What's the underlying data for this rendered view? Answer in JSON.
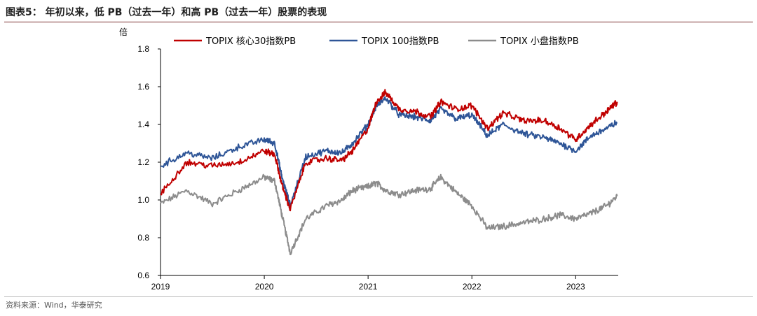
{
  "figure_title": "图表5：  年初以来，低 PB（过去一年）和高 PB（过去一年）股票的表现",
  "source_text": "资料来源：Wind，华泰研究",
  "chart_data": {
    "type": "line",
    "title": "",
    "ylabel": "倍",
    "xlabel": "",
    "ylim": [
      0.6,
      1.8
    ],
    "yticks": [
      "0.6",
      "0.8",
      "1.0",
      "1.2",
      "1.4",
      "1.6",
      "1.8"
    ],
    "xticks": [
      "2019",
      "2020",
      "2021",
      "2022",
      "2023"
    ],
    "x": [
      2019.0,
      2019.25,
      2019.5,
      2019.75,
      2020.0,
      2020.1,
      2020.17,
      2020.25,
      2020.4,
      2020.6,
      2020.75,
      2020.85,
      2021.0,
      2021.08,
      2021.17,
      2021.3,
      2021.45,
      2021.6,
      2021.7,
      2021.85,
      2022.0,
      2022.15,
      2022.3,
      2022.5,
      2022.7,
      2022.85,
      2023.0,
      2023.15,
      2023.3,
      2023.4
    ],
    "series": [
      {
        "name": "TOPIX 核心30指数PB",
        "color": "#c00000",
        "values": [
          1.03,
          1.2,
          1.18,
          1.2,
          1.26,
          1.24,
          1.08,
          0.95,
          1.2,
          1.22,
          1.21,
          1.26,
          1.38,
          1.52,
          1.57,
          1.48,
          1.47,
          1.44,
          1.52,
          1.48,
          1.5,
          1.38,
          1.46,
          1.42,
          1.42,
          1.38,
          1.32,
          1.4,
          1.47,
          1.52
        ]
      },
      {
        "name": "TOPIX 100指数PB",
        "color": "#2e5597",
        "values": [
          1.18,
          1.25,
          1.22,
          1.28,
          1.32,
          1.3,
          1.12,
          0.97,
          1.23,
          1.26,
          1.25,
          1.3,
          1.4,
          1.5,
          1.54,
          1.45,
          1.44,
          1.42,
          1.48,
          1.43,
          1.45,
          1.34,
          1.4,
          1.35,
          1.33,
          1.3,
          1.26,
          1.34,
          1.38,
          1.41
        ]
      },
      {
        "name": "TOPIX 小盘指数PB",
        "color": "#8c8c8c",
        "values": [
          0.98,
          1.05,
          0.98,
          1.05,
          1.12,
          1.1,
          0.92,
          0.72,
          0.9,
          0.97,
          1.0,
          1.05,
          1.07,
          1.09,
          1.05,
          1.03,
          1.05,
          1.06,
          1.12,
          1.04,
          0.97,
          0.85,
          0.86,
          0.88,
          0.9,
          0.92,
          0.9,
          0.93,
          0.97,
          1.02
        ]
      }
    ],
    "legend_position": "top-center"
  }
}
